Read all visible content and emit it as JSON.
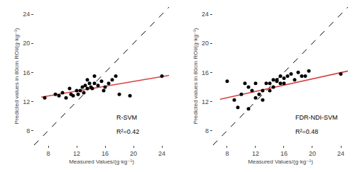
{
  "chart_data": [
    {
      "type": "scatter",
      "xlabel": "Measured Values/(g·kg⁻¹)",
      "ylabel": "Predicted values in 80cm ROI/(g·kg⁻¹)",
      "xlim": [
        6,
        25
      ],
      "ylim": [
        6,
        25
      ],
      "xticks": [
        8,
        12,
        16,
        20,
        24
      ],
      "yticks": [
        8,
        12,
        16,
        20,
        24
      ],
      "grid": false,
      "annotations": [
        "R-SVM",
        "R²=0.42"
      ],
      "series": [
        {
          "type": "line",
          "color": "#000000",
          "line_style": "dashed",
          "x": [
            6,
            25
          ],
          "values": [
            6,
            25
          ]
        },
        {
          "type": "scatter",
          "color": "#000000",
          "marker": "circle",
          "x": [
            7.5,
            9.0,
            9.5,
            10.0,
            10.5,
            11.0,
            11.2,
            11.5,
            12.0,
            12.2,
            12.5,
            12.8,
            13.0,
            13.2,
            13.5,
            13.5,
            13.8,
            14.0,
            14.2,
            14.5,
            14.5,
            15.0,
            15.5,
            15.8,
            16.0,
            16.5,
            17.0,
            17.5,
            18.0,
            19.5,
            24.0
          ],
          "values": [
            12.5,
            13.0,
            12.8,
            13.2,
            12.5,
            13.8,
            13.0,
            12.8,
            13.5,
            13.0,
            13.5,
            14.0,
            13.2,
            14.2,
            13.8,
            15.0,
            14.5,
            14.0,
            13.8,
            14.5,
            15.5,
            14.2,
            14.8,
            13.5,
            14.0,
            14.5,
            15.0,
            15.5,
            13.0,
            12.8,
            15.5
          ]
        },
        {
          "type": "line",
          "color": "#d94040",
          "line_style": "solid",
          "x": [
            7.0,
            25.0
          ],
          "values": [
            12.6,
            15.6
          ]
        }
      ]
    },
    {
      "type": "scatter",
      "xlabel": "Measured Values/(g·kg⁻¹)",
      "ylabel": "Predicted values in 80cm ROI/(g·kg⁻¹)",
      "xlim": [
        6,
        25
      ],
      "ylim": [
        6,
        25
      ],
      "xticks": [
        8,
        12,
        16,
        20,
        24
      ],
      "yticks": [
        8,
        12,
        16,
        20,
        24
      ],
      "grid": false,
      "annotations": [
        "FDR-NDI-SVM",
        "R²=0.48"
      ],
      "series": [
        {
          "type": "line",
          "color": "#000000",
          "line_style": "dashed",
          "x": [
            6,
            25
          ],
          "values": [
            6,
            25
          ]
        },
        {
          "type": "scatter",
          "color": "#000000",
          "marker": "circle",
          "x": [
            8.0,
            9.0,
            9.5,
            10.0,
            10.5,
            11.0,
            11.0,
            11.5,
            12.0,
            12.0,
            12.5,
            13.0,
            13.0,
            13.5,
            14.0,
            14.0,
            14.5,
            14.5,
            15.0,
            15.0,
            15.5,
            15.5,
            16.0,
            16.0,
            16.5,
            17.0,
            17.5,
            18.0,
            18.5,
            19.0,
            19.5,
            24.0
          ],
          "values": [
            14.8,
            12.2,
            11.2,
            13.0,
            14.5,
            11.0,
            14.0,
            13.5,
            12.5,
            14.5,
            13.0,
            13.5,
            12.2,
            14.5,
            13.5,
            14.5,
            15.0,
            14.0,
            14.8,
            15.0,
            14.5,
            15.5,
            15.2,
            14.5,
            15.5,
            15.8,
            15.0,
            16.0,
            15.5,
            15.5,
            16.2,
            15.8
          ]
        },
        {
          "type": "line",
          "color": "#d94040",
          "line_style": "solid",
          "x": [
            7.0,
            25.0
          ],
          "values": [
            12.3,
            16.2
          ]
        }
      ]
    }
  ]
}
